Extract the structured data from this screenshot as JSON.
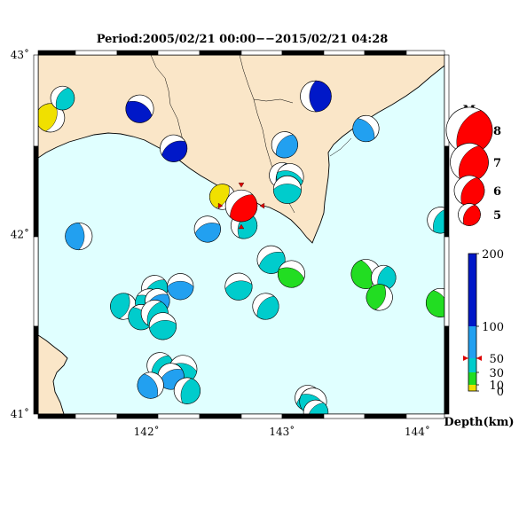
{
  "title": "Period:2005/02/21 00:00−−2015/02/21 04:28",
  "map": {
    "lon_range": [
      141.2,
      144.2
    ],
    "lat_range": [
      41.0,
      43.0
    ],
    "lon_ticks": [
      {
        "value": 142,
        "label": "142˚"
      },
      {
        "value": 143,
        "label": "143˚"
      },
      {
        "value": 144,
        "label": "144˚"
      }
    ],
    "lat_ticks": [
      {
        "value": 43,
        "label": "43˚"
      },
      {
        "value": 42,
        "label": "42˚"
      },
      {
        "value": 41,
        "label": "41˚"
      }
    ],
    "colors": {
      "sea": "#e0ffff",
      "land": "#fae6c8",
      "coast": "#000000",
      "border": "#000000",
      "mainshock": "#ff0000"
    }
  },
  "magnitude_legend": {
    "title": "M",
    "items": [
      {
        "m": 8,
        "label": "8"
      },
      {
        "m": 7,
        "label": "7"
      },
      {
        "m": 6,
        "label": "6"
      },
      {
        "m": 5,
        "label": "5"
      }
    ]
  },
  "depth_scale": {
    "label": "Depth(km)",
    "ticks": [
      {
        "v": 200,
        "label": "200"
      },
      {
        "v": 100,
        "label": "100"
      },
      {
        "v": 50,
        "label": "50"
      },
      {
        "v": 30,
        "label": "30"
      },
      {
        "v": 10,
        "label": "10"
      },
      {
        "v": 0,
        "label": "0"
      }
    ],
    "bands": [
      {
        "from": 0,
        "to": 10,
        "color": "#f0e000"
      },
      {
        "from": 10,
        "to": 30,
        "color": "#22dd22"
      },
      {
        "from": 30,
        "to": 50,
        "color": "#00cccc"
      },
      {
        "from": 50,
        "to": 100,
        "color": "#22a0f0"
      },
      {
        "from": 100,
        "to": 200,
        "color": "#0018c8"
      }
    ],
    "marker_depth": 50
  },
  "events": [
    {
      "lon": 141.29,
      "lat": 42.65,
      "m": 5.8,
      "depth": 5,
      "rot": 200
    },
    {
      "lon": 141.38,
      "lat": 42.76,
      "m": 5.2,
      "depth": 45,
      "rot": 30
    },
    {
      "lon": 141.95,
      "lat": 42.7,
      "m": 5.7,
      "depth": 150,
      "rot": 120
    },
    {
      "lon": 142.2,
      "lat": 42.48,
      "m": 5.6,
      "depth": 150,
      "rot": 60
    },
    {
      "lon": 143.25,
      "lat": 42.77,
      "m": 6.1,
      "depth": 160,
      "rot": 0
    },
    {
      "lon": 143.02,
      "lat": 42.5,
      "m": 5.5,
      "depth": 65,
      "rot": 40
    },
    {
      "lon": 143.62,
      "lat": 42.59,
      "m": 5.5,
      "depth": 70,
      "rot": 140
    },
    {
      "lon": 143.0,
      "lat": 42.33,
      "m": 5.4,
      "depth": 70,
      "rot": 20
    },
    {
      "lon": 143.06,
      "lat": 42.32,
      "m": 5.6,
      "depth": 45,
      "rot": 110
    },
    {
      "lon": 143.04,
      "lat": 42.25,
      "m": 5.7,
      "depth": 40,
      "rot": 90
    },
    {
      "lon": 142.56,
      "lat": 42.21,
      "m": 5.4,
      "depth": 5,
      "rot": 210
    },
    {
      "lon": 142.45,
      "lat": 42.03,
      "m": 5.5,
      "depth": 60,
      "rot": 70
    },
    {
      "lon": 142.72,
      "lat": 42.05,
      "m": 5.5,
      "depth": 45,
      "rot": 20
    },
    {
      "lon": 141.5,
      "lat": 41.99,
      "m": 5.6,
      "depth": 65,
      "rot": 180
    },
    {
      "lon": 144.17,
      "lat": 42.08,
      "m": 5.5,
      "depth": 50,
      "rot": 30
    },
    {
      "lon": 142.92,
      "lat": 41.86,
      "m": 5.7,
      "depth": 40,
      "rot": 60
    },
    {
      "lon": 143.07,
      "lat": 41.78,
      "m": 5.6,
      "depth": 25,
      "rot": 110
    },
    {
      "lon": 142.68,
      "lat": 41.71,
      "m": 5.6,
      "depth": 45,
      "rot": 80
    },
    {
      "lon": 142.88,
      "lat": 41.6,
      "m": 5.5,
      "depth": 45,
      "rot": 40
    },
    {
      "lon": 143.62,
      "lat": 41.78,
      "m": 5.9,
      "depth": 25,
      "rot": 160
    },
    {
      "lon": 143.75,
      "lat": 41.76,
      "m": 5.3,
      "depth": 45,
      "rot": 20
    },
    {
      "lon": 143.72,
      "lat": 41.65,
      "m": 5.5,
      "depth": 25,
      "rot": 200
    },
    {
      "lon": 144.17,
      "lat": 41.62,
      "m": 5.8,
      "depth": 25,
      "rot": 150
    },
    {
      "lon": 142.06,
      "lat": 41.7,
      "m": 5.5,
      "depth": 45,
      "rot": 50
    },
    {
      "lon": 142.25,
      "lat": 41.71,
      "m": 5.5,
      "depth": 70,
      "rot": 90
    },
    {
      "lon": 141.83,
      "lat": 41.6,
      "m": 5.5,
      "depth": 45,
      "rot": 200
    },
    {
      "lon": 142.02,
      "lat": 41.62,
      "m": 5.7,
      "depth": 45,
      "rot": 120
    },
    {
      "lon": 142.08,
      "lat": 41.63,
      "m": 5.3,
      "depth": 60,
      "rot": 60
    },
    {
      "lon": 141.96,
      "lat": 41.54,
      "m": 5.4,
      "depth": 45,
      "rot": 140
    },
    {
      "lon": 142.06,
      "lat": 41.56,
      "m": 5.6,
      "depth": 45,
      "rot": 30
    },
    {
      "lon": 142.12,
      "lat": 41.49,
      "m": 5.6,
      "depth": 45,
      "rot": 80
    },
    {
      "lon": 142.1,
      "lat": 41.27,
      "m": 5.5,
      "depth": 45,
      "rot": 40
    },
    {
      "lon": 142.27,
      "lat": 41.25,
      "m": 5.7,
      "depth": 45,
      "rot": 100
    },
    {
      "lon": 142.18,
      "lat": 41.21,
      "m": 5.5,
      "depth": 60,
      "rot": 60
    },
    {
      "lon": 142.03,
      "lat": 41.16,
      "m": 5.5,
      "depth": 60,
      "rot": 150
    },
    {
      "lon": 142.3,
      "lat": 41.13,
      "m": 5.5,
      "depth": 45,
      "rot": 20
    },
    {
      "lon": 143.19,
      "lat": 41.09,
      "m": 5.4,
      "depth": 45,
      "rot": 60
    },
    {
      "lon": 143.23,
      "lat": 41.07,
      "m": 5.6,
      "depth": 45,
      "rot": 120
    },
    {
      "lon": 143.25,
      "lat": 41.01,
      "m": 5.3,
      "depth": 45,
      "rot": 40
    }
  ],
  "mainshock": {
    "lon": 142.7,
    "lat": 42.16,
    "m": 6.2,
    "depth": 50,
    "rot": 45
  }
}
